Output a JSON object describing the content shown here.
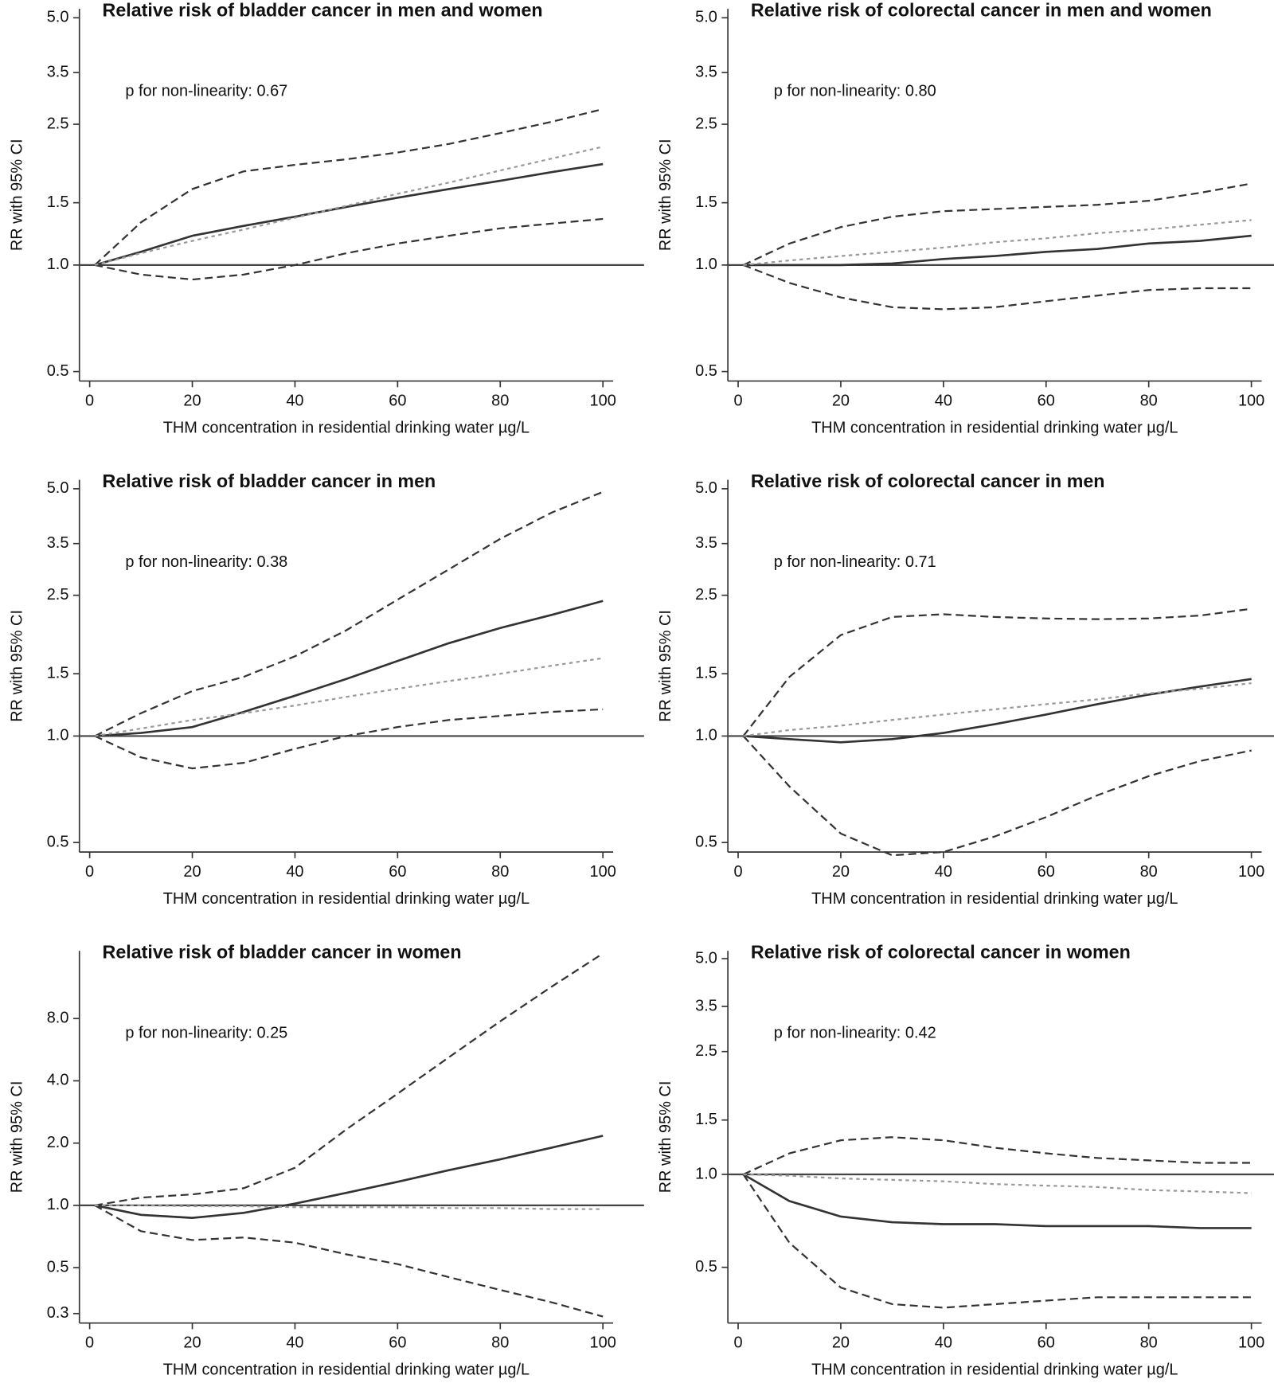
{
  "chart_data": [
    {
      "type": "line",
      "title": "Relative risk of bladder cancer in men and women",
      "annotation": "p for non-linearity: 0.67",
      "xlabel": "THM concentration in residential drinking water µg/L",
      "ylabel": "RR with 95% CI",
      "log_y": true,
      "xlim": [
        -2,
        102
      ],
      "ylim": [
        0.47,
        5.3
      ],
      "xticks": [
        0,
        20,
        40,
        60,
        80,
        100
      ],
      "yticks": [
        0.5,
        {
          "value": 1,
          "label": "1.0"
        },
        1.5,
        2.5,
        3.5,
        {
          "value": 5,
          "label": "5.0"
        }
      ],
      "reference_line": 1,
      "x": [
        1,
        10,
        20,
        30,
        40,
        50,
        60,
        70,
        80,
        90,
        100
      ],
      "series": [
        {
          "color": "#333333",
          "dash": "dashed",
          "values": [
            1,
            1.32,
            1.64,
            1.84,
            1.92,
            1.99,
            2.08,
            2.2,
            2.36,
            2.54,
            2.76
          ]
        },
        {
          "color": "#333333",
          "dash": "solid",
          "values": [
            1,
            1.09,
            1.21,
            1.29,
            1.37,
            1.46,
            1.55,
            1.64,
            1.73,
            1.83,
            1.93
          ]
        },
        {
          "color": "#333333",
          "dash": "dashed",
          "values": [
            1,
            0.94,
            0.91,
            0.94,
            1.0,
            1.08,
            1.15,
            1.21,
            1.27,
            1.31,
            1.35
          ]
        },
        {
          "color": "#999999",
          "dash": "dotted",
          "values": [
            1,
            1.08,
            1.17,
            1.26,
            1.36,
            1.47,
            1.59,
            1.71,
            1.85,
            2.0,
            2.16
          ]
        }
      ]
    },
    {
      "type": "line",
      "title": "Relative risk of colorectal cancer in men and women",
      "annotation": "p for non-linearity: 0.80",
      "xlabel": "THM concentration in residential drinking water µg/L",
      "ylabel": "RR with 95% CI",
      "log_y": true,
      "xlim": [
        -2,
        102
      ],
      "ylim": [
        0.47,
        5.3
      ],
      "xticks": [
        0,
        20,
        40,
        60,
        80,
        100
      ],
      "yticks": [
        0.5,
        {
          "value": 1,
          "label": "1.0"
        },
        1.5,
        2.5,
        3.5,
        {
          "value": 5,
          "label": "5.0"
        }
      ],
      "reference_line": 1,
      "x": [
        1,
        10,
        20,
        30,
        40,
        50,
        60,
        70,
        80,
        90,
        100
      ],
      "series": [
        {
          "color": "#333333",
          "dash": "dashed",
          "values": [
            1,
            1.15,
            1.28,
            1.37,
            1.42,
            1.44,
            1.46,
            1.48,
            1.52,
            1.6,
            1.7
          ]
        },
        {
          "color": "#333333",
          "dash": "solid",
          "values": [
            1,
            1.0,
            1.0,
            1.01,
            1.04,
            1.06,
            1.09,
            1.11,
            1.15,
            1.17,
            1.21
          ]
        },
        {
          "color": "#333333",
          "dash": "dashed",
          "values": [
            1,
            0.89,
            0.81,
            0.76,
            0.75,
            0.76,
            0.79,
            0.82,
            0.85,
            0.86,
            0.86
          ]
        },
        {
          "color": "#999999",
          "dash": "dotted",
          "values": [
            1,
            1.03,
            1.06,
            1.09,
            1.12,
            1.16,
            1.19,
            1.23,
            1.26,
            1.3,
            1.34
          ]
        }
      ]
    },
    {
      "type": "line",
      "title": "Relative risk of bladder cancer in men",
      "annotation": "p for non-linearity: 0.38",
      "xlabel": "THM concentration in residential drinking water µg/L",
      "ylabel": "RR with 95% CI",
      "log_y": true,
      "xlim": [
        -2,
        102
      ],
      "ylim": [
        0.47,
        5.3
      ],
      "xticks": [
        0,
        20,
        40,
        60,
        80,
        100
      ],
      "yticks": [
        0.5,
        {
          "value": 1,
          "label": "1.0"
        },
        1.5,
        2.5,
        3.5,
        {
          "value": 5,
          "label": "5.0"
        }
      ],
      "reference_line": 1,
      "x": [
        1,
        10,
        20,
        30,
        40,
        50,
        60,
        70,
        80,
        90,
        100
      ],
      "series": [
        {
          "color": "#333333",
          "dash": "dashed",
          "values": [
            1,
            1.16,
            1.34,
            1.47,
            1.68,
            1.99,
            2.43,
            2.96,
            3.61,
            4.28,
            4.9
          ]
        },
        {
          "color": "#333333",
          "dash": "solid",
          "values": [
            1,
            1.02,
            1.06,
            1.17,
            1.3,
            1.45,
            1.63,
            1.83,
            2.02,
            2.2,
            2.41
          ]
        },
        {
          "color": "#333333",
          "dash": "dashed",
          "values": [
            1,
            0.87,
            0.81,
            0.84,
            0.92,
            1.0,
            1.06,
            1.11,
            1.14,
            1.17,
            1.19
          ]
        },
        {
          "color": "#999999",
          "dash": "dotted",
          "values": [
            1,
            1.05,
            1.11,
            1.16,
            1.22,
            1.29,
            1.36,
            1.43,
            1.5,
            1.58,
            1.66
          ]
        }
      ]
    },
    {
      "type": "line",
      "title": "Relative risk of colorectal cancer in men",
      "annotation": "p for non-linearity: 0.71",
      "xlabel": "THM concentration in residential drinking water µg/L",
      "ylabel": "RR with 95% CI",
      "log_y": true,
      "xlim": [
        -2,
        102
      ],
      "ylim": [
        0.47,
        5.3
      ],
      "xticks": [
        0,
        20,
        40,
        60,
        80,
        100
      ],
      "yticks": [
        0.5,
        {
          "value": 1,
          "label": "1.0"
        },
        1.5,
        2.5,
        3.5,
        {
          "value": 5,
          "label": "5.0"
        }
      ],
      "reference_line": 1,
      "x": [
        1,
        10,
        20,
        30,
        40,
        50,
        60,
        70,
        80,
        90,
        100
      ],
      "series": [
        {
          "color": "#333333",
          "dash": "dashed",
          "values": [
            1,
            1.47,
            1.93,
            2.17,
            2.21,
            2.17,
            2.15,
            2.14,
            2.15,
            2.19,
            2.29
          ]
        },
        {
          "color": "#333333",
          "dash": "solid",
          "values": [
            1,
            0.98,
            0.96,
            0.98,
            1.02,
            1.08,
            1.15,
            1.23,
            1.31,
            1.38,
            1.45
          ]
        },
        {
          "color": "#333333",
          "dash": "dashed",
          "values": [
            1,
            0.72,
            0.53,
            0.46,
            0.47,
            0.52,
            0.59,
            0.68,
            0.77,
            0.85,
            0.91
          ]
        },
        {
          "color": "#999999",
          "dash": "dotted",
          "values": [
            1,
            1.04,
            1.07,
            1.11,
            1.15,
            1.19,
            1.23,
            1.27,
            1.32,
            1.36,
            1.41
          ]
        }
      ]
    },
    {
      "type": "line",
      "title": "Relative risk of bladder cancer in women",
      "annotation": "p for non-linearity: 0.25",
      "xlabel": "THM concentration in residential drinking water µg/L",
      "ylabel": "RR with 95% CI",
      "log_y": true,
      "xlim": [
        -2,
        102
      ],
      "ylim": [
        0.27,
        17
      ],
      "xticks": [
        0,
        20,
        40,
        60,
        80,
        100
      ],
      "yticks": [
        0.3,
        0.5,
        {
          "value": 1,
          "label": "1.0"
        },
        {
          "value": 2,
          "label": "2.0"
        },
        {
          "value": 4,
          "label": "4.0"
        },
        {
          "value": 8,
          "label": "8.0"
        }
      ],
      "reference_line": 1,
      "x": [
        1,
        10,
        20,
        30,
        40,
        50,
        60,
        70,
        80,
        90,
        100
      ],
      "series": [
        {
          "color": "#333333",
          "dash": "dashed",
          "values": [
            1,
            1.09,
            1.13,
            1.21,
            1.52,
            2.33,
            3.47,
            5.2,
            7.76,
            11.4,
            16.5
          ]
        },
        {
          "color": "#333333",
          "dash": "solid",
          "values": [
            1,
            0.9,
            0.87,
            0.92,
            1.02,
            1.15,
            1.3,
            1.48,
            1.67,
            1.9,
            2.17
          ]
        },
        {
          "color": "#333333",
          "dash": "dashed",
          "values": [
            1,
            0.75,
            0.68,
            0.7,
            0.66,
            0.58,
            0.52,
            0.45,
            0.39,
            0.34,
            0.29
          ]
        },
        {
          "color": "#999999",
          "dash": "dotted",
          "values": [
            1,
            1.0,
            0.99,
            0.99,
            0.98,
            0.98,
            0.98,
            0.97,
            0.97,
            0.96,
            0.96
          ]
        }
      ]
    },
    {
      "type": "line",
      "title": "Relative risk of colorectal cancer in women",
      "annotation": "p for non-linearity: 0.42",
      "xlabel": "THM concentration in residential drinking water µg/L",
      "ylabel": "RR with 95% CI",
      "log_y": true,
      "xlim": [
        -2,
        102
      ],
      "ylim": [
        0.33,
        5.3
      ],
      "xticks": [
        0,
        20,
        40,
        60,
        80,
        100
      ],
      "yticks": [
        0.5,
        {
          "value": 1,
          "label": "1.0"
        },
        1.5,
        2.5,
        3.5,
        {
          "value": 5,
          "label": "5.0"
        }
      ],
      "reference_line": 1,
      "x": [
        1,
        10,
        20,
        30,
        40,
        50,
        60,
        70,
        80,
        90,
        100
      ],
      "series": [
        {
          "color": "#333333",
          "dash": "dashed",
          "values": [
            1,
            1.17,
            1.29,
            1.32,
            1.29,
            1.22,
            1.17,
            1.13,
            1.11,
            1.09,
            1.09
          ]
        },
        {
          "color": "#333333",
          "dash": "solid",
          "values": [
            1,
            0.82,
            0.73,
            0.7,
            0.69,
            0.69,
            0.68,
            0.68,
            0.68,
            0.67,
            0.67
          ]
        },
        {
          "color": "#333333",
          "dash": "dashed",
          "values": [
            1,
            0.6,
            0.43,
            0.38,
            0.37,
            0.38,
            0.39,
            0.4,
            0.4,
            0.4,
            0.4
          ]
        },
        {
          "color": "#999999",
          "dash": "dotted",
          "values": [
            1,
            0.99,
            0.97,
            0.96,
            0.95,
            0.93,
            0.92,
            0.91,
            0.89,
            0.88,
            0.87
          ]
        }
      ]
    }
  ]
}
